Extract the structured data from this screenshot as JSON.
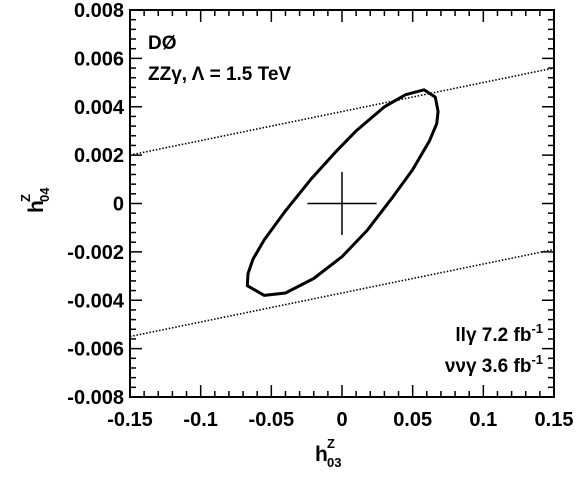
{
  "chart_data": {
    "type": "line",
    "x": {
      "label_main": "h",
      "label_sup": "Z",
      "label_sub": "03",
      "lim": [
        -0.15,
        0.15
      ],
      "ticks": [
        -0.15,
        -0.1,
        -0.05,
        0,
        0.05,
        0.1,
        0.15
      ],
      "tick_labels": [
        "-0.15",
        "-0.1",
        "-0.05",
        "0",
        "0.05",
        "0.1",
        "0.15"
      ]
    },
    "y": {
      "label_main": "h",
      "label_sup": "Z",
      "label_sub": "04",
      "lim": [
        -0.008,
        0.008
      ],
      "ticks": [
        -0.008,
        -0.006,
        -0.004,
        -0.002,
        0,
        0.002,
        0.004,
        0.006,
        0.008
      ],
      "tick_labels": [
        "-0.008",
        "-0.006",
        "-0.004",
        "-0.002",
        "0",
        "0.002",
        "0.004",
        "0.006",
        "0.008"
      ]
    },
    "annotations": {
      "experiment": "DØ",
      "process": "ZZγ, Λ = 1.5 TeV",
      "lumi_llg_prefix": "llγ 7.2 fb",
      "lumi_llg_exp": "-1",
      "lumi_nng_prefix": "ννγ 3.6 fb",
      "lumi_nng_exp": "-1"
    },
    "series": [
      {
        "style": "solid",
        "color": "#000000",
        "points": [
          [
            -0.067,
            -0.0034
          ],
          [
            -0.0665,
            -0.0029
          ],
          [
            -0.063,
            -0.0023
          ],
          [
            -0.055,
            -0.0015
          ],
          [
            -0.04,
            -0.0003
          ],
          [
            -0.022,
            0.001
          ],
          [
            -0.005,
            0.0021
          ],
          [
            0.01,
            0.003
          ],
          [
            0.03,
            0.004
          ],
          [
            0.045,
            0.0045
          ],
          [
            0.058,
            0.0047
          ],
          [
            0.066,
            0.0044
          ],
          [
            0.068,
            0.0038
          ],
          [
            0.067,
            0.0033
          ],
          [
            0.062,
            0.0026
          ],
          [
            0.05,
            0.0014
          ],
          [
            0.035,
            0.0002
          ],
          [
            0.018,
            -0.0011
          ],
          [
            0.0,
            -0.0022
          ],
          [
            -0.02,
            -0.0031
          ],
          [
            -0.04,
            -0.0037
          ],
          [
            -0.055,
            -0.0038
          ],
          [
            -0.067,
            -0.0034
          ]
        ]
      },
      {
        "style": "dotted",
        "color": "#000000",
        "points": [
          [
            -0.15,
            0.002
          ],
          [
            0.15,
            0.0056
          ]
        ]
      },
      {
        "style": "dotted",
        "color": "#000000",
        "points": [
          [
            -0.15,
            -0.0055
          ],
          [
            0.15,
            -0.0019
          ]
        ]
      },
      {
        "style": "cross",
        "color": "#000000",
        "center": [
          0,
          0
        ],
        "x_half": 0.0245,
        "y_half": 0.0013
      }
    ]
  }
}
